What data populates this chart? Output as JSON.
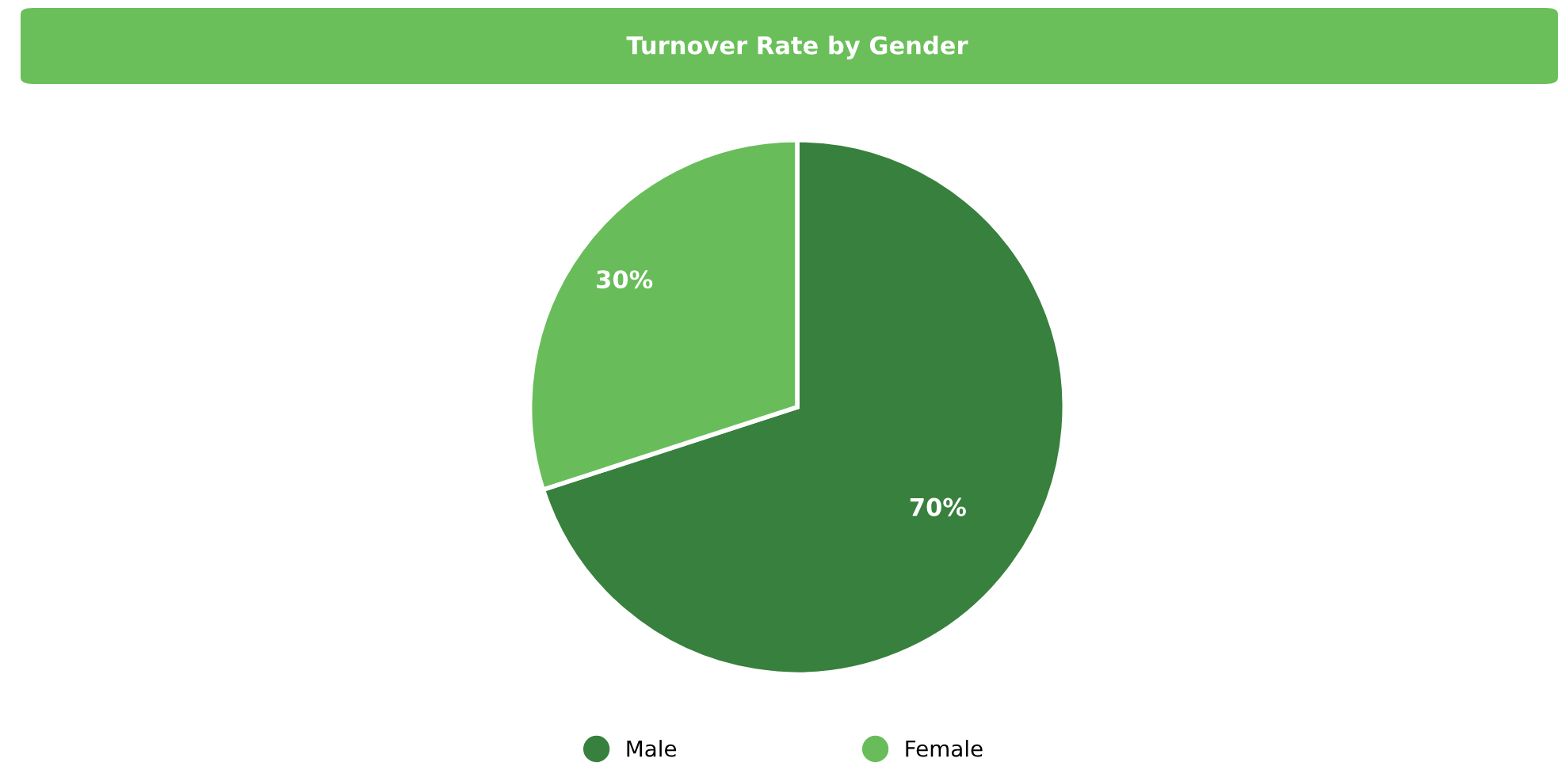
{
  "chart_data": {
    "type": "pie",
    "title": "Turnover Rate by Gender",
    "categories": [
      "Male",
      "Female"
    ],
    "values": [
      70,
      30
    ],
    "colors": [
      "#38803d",
      "#68bd5a"
    ],
    "value_labels": [
      "70%",
      "30%"
    ],
    "legend": "bottom"
  }
}
